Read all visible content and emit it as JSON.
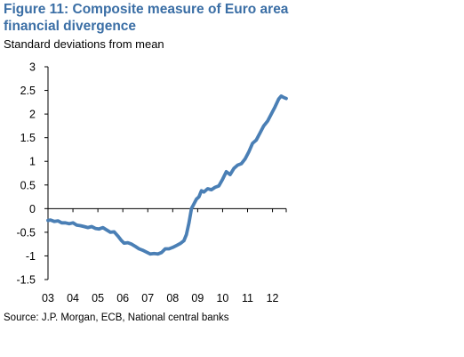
{
  "title": "Figure 11: Composite measure of Euro area financial divergence",
  "subtitle": "Standard deviations from mean",
  "source": "Source: J.P. Morgan, ECB, National central banks",
  "chart_data": {
    "type": "line",
    "title": "Figure 11: Composite measure of Euro area financial divergence",
    "ylabel": "Standard deviations from mean",
    "xlabel": "",
    "ylim": [
      -1.5,
      3
    ],
    "yticks": [
      -1.5,
      -1,
      -0.5,
      0,
      0.5,
      1,
      1.5,
      2,
      2.5,
      3
    ],
    "ytick_labels": [
      "-1.5",
      "-1",
      "-0.5",
      "0",
      "0.5",
      "1",
      "1.5",
      "2",
      "2.5",
      "3"
    ],
    "xlim": [
      2003,
      2012.55
    ],
    "xticks": [
      2003,
      2004,
      2005,
      2006,
      2007,
      2008,
      2009,
      2010,
      2011,
      2012
    ],
    "xtick_labels": [
      "03",
      "04",
      "05",
      "06",
      "07",
      "08",
      "09",
      "10",
      "11",
      "12"
    ],
    "grid": false,
    "line_color": "#4a7fb5",
    "series": [
      {
        "x": [
          2003.0,
          2003.1,
          2003.25,
          2003.4,
          2003.55,
          2003.7,
          2003.85,
          2004.0,
          2004.15,
          2004.3,
          2004.45,
          2004.6,
          2004.75,
          2004.9,
          2005.05,
          2005.2,
          2005.35,
          2005.5,
          2005.65,
          2005.8,
          2005.95,
          2006.05,
          2006.2,
          2006.35,
          2006.5,
          2006.65,
          2006.8,
          2006.95,
          2007.1,
          2007.25,
          2007.4,
          2007.55,
          2007.7,
          2007.85,
          2008.0,
          2008.15,
          2008.3,
          2008.45,
          2008.55,
          2008.65,
          2008.75,
          2008.85,
          2008.95,
          2009.05,
          2009.15,
          2009.25,
          2009.4,
          2009.55,
          2009.7,
          2009.85,
          2010.0,
          2010.15,
          2010.3,
          2010.45,
          2010.6,
          2010.75,
          2010.9,
          2011.05,
          2011.2,
          2011.35,
          2011.5,
          2011.65,
          2011.8,
          2011.95,
          2012.1,
          2012.25,
          2012.35,
          2012.45,
          2012.55
        ],
        "y": [
          -0.25,
          -0.24,
          -0.27,
          -0.26,
          -0.3,
          -0.3,
          -0.32,
          -0.3,
          -0.35,
          -0.36,
          -0.38,
          -0.4,
          -0.38,
          -0.42,
          -0.43,
          -0.4,
          -0.45,
          -0.5,
          -0.49,
          -0.58,
          -0.68,
          -0.73,
          -0.72,
          -0.75,
          -0.8,
          -0.85,
          -0.88,
          -0.92,
          -0.96,
          -0.95,
          -0.96,
          -0.93,
          -0.85,
          -0.85,
          -0.82,
          -0.78,
          -0.74,
          -0.68,
          -0.55,
          -0.3,
          0.0,
          0.1,
          0.2,
          0.25,
          0.38,
          0.35,
          0.42,
          0.4,
          0.45,
          0.48,
          0.62,
          0.78,
          0.72,
          0.85,
          0.92,
          0.95,
          1.05,
          1.2,
          1.38,
          1.45,
          1.6,
          1.75,
          1.85,
          2.0,
          2.15,
          2.32,
          2.38,
          2.35,
          2.33
        ]
      }
    ]
  }
}
